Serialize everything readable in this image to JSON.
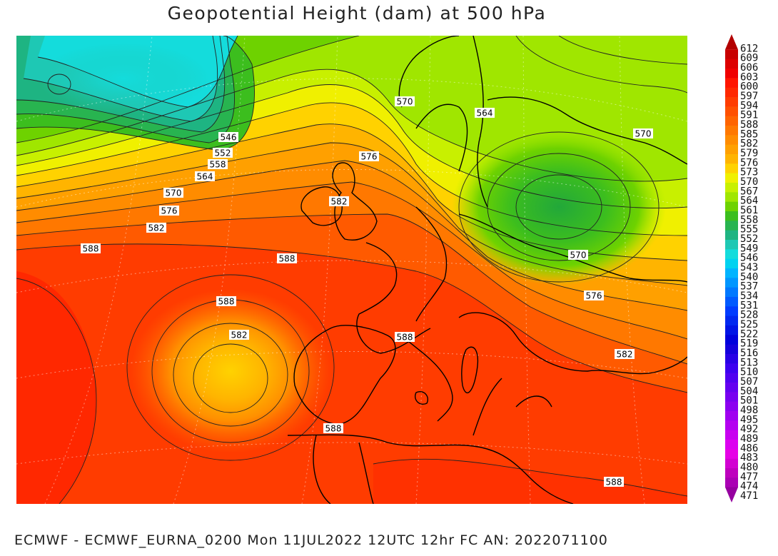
{
  "title": "Geopotential Height (dam) at 500 hPa",
  "footer": "ECMWF - ECMWF_EURNA_0200 Mon 11JUL2022 12UTC 12hr FC AN: 2022071100",
  "colorbar": {
    "values": [
      612,
      609,
      606,
      603,
      600,
      597,
      594,
      591,
      588,
      585,
      582,
      579,
      576,
      573,
      570,
      567,
      564,
      561,
      558,
      555,
      552,
      549,
      546,
      543,
      540,
      537,
      534,
      531,
      528,
      525,
      522,
      519,
      516,
      513,
      510,
      507,
      504,
      501,
      498,
      495,
      492,
      489,
      486,
      483,
      480,
      477,
      474,
      471
    ],
    "colors": [
      "#b30000",
      "#c80000",
      "#dd0000",
      "#f00000",
      "#ff1500",
      "#ff2800",
      "#ff3c00",
      "#ff5000",
      "#ff6400",
      "#ff7800",
      "#ff8c00",
      "#ffa000",
      "#ffb400",
      "#ffd200",
      "#f0f000",
      "#c8f000",
      "#a0e600",
      "#6ed200",
      "#3cbe1e",
      "#28b450",
      "#1eb482",
      "#1ec8b4",
      "#14dcdc",
      "#00d2f0",
      "#00b4ff",
      "#0096ff",
      "#0078ff",
      "#005aff",
      "#003cff",
      "#0028f0",
      "#0014e6",
      "#0000dc",
      "#1400dc",
      "#2800e6",
      "#3c00f0",
      "#5000f0",
      "#6400f0",
      "#7800f0",
      "#8c00f0",
      "#a000f0",
      "#b400f0",
      "#c800f0",
      "#dc00f0",
      "#e600e6",
      "#d200d2",
      "#be00be",
      "#aa00b4",
      "#9600a0"
    ]
  },
  "contour_labels": [
    "546",
    "552",
    "558",
    "564",
    "570",
    "576",
    "582",
    "588",
    "588",
    "588",
    "582",
    "588",
    "588",
    "570",
    "564",
    "570",
    "576",
    "582",
    "570",
    "576",
    "582",
    "588"
  ]
}
